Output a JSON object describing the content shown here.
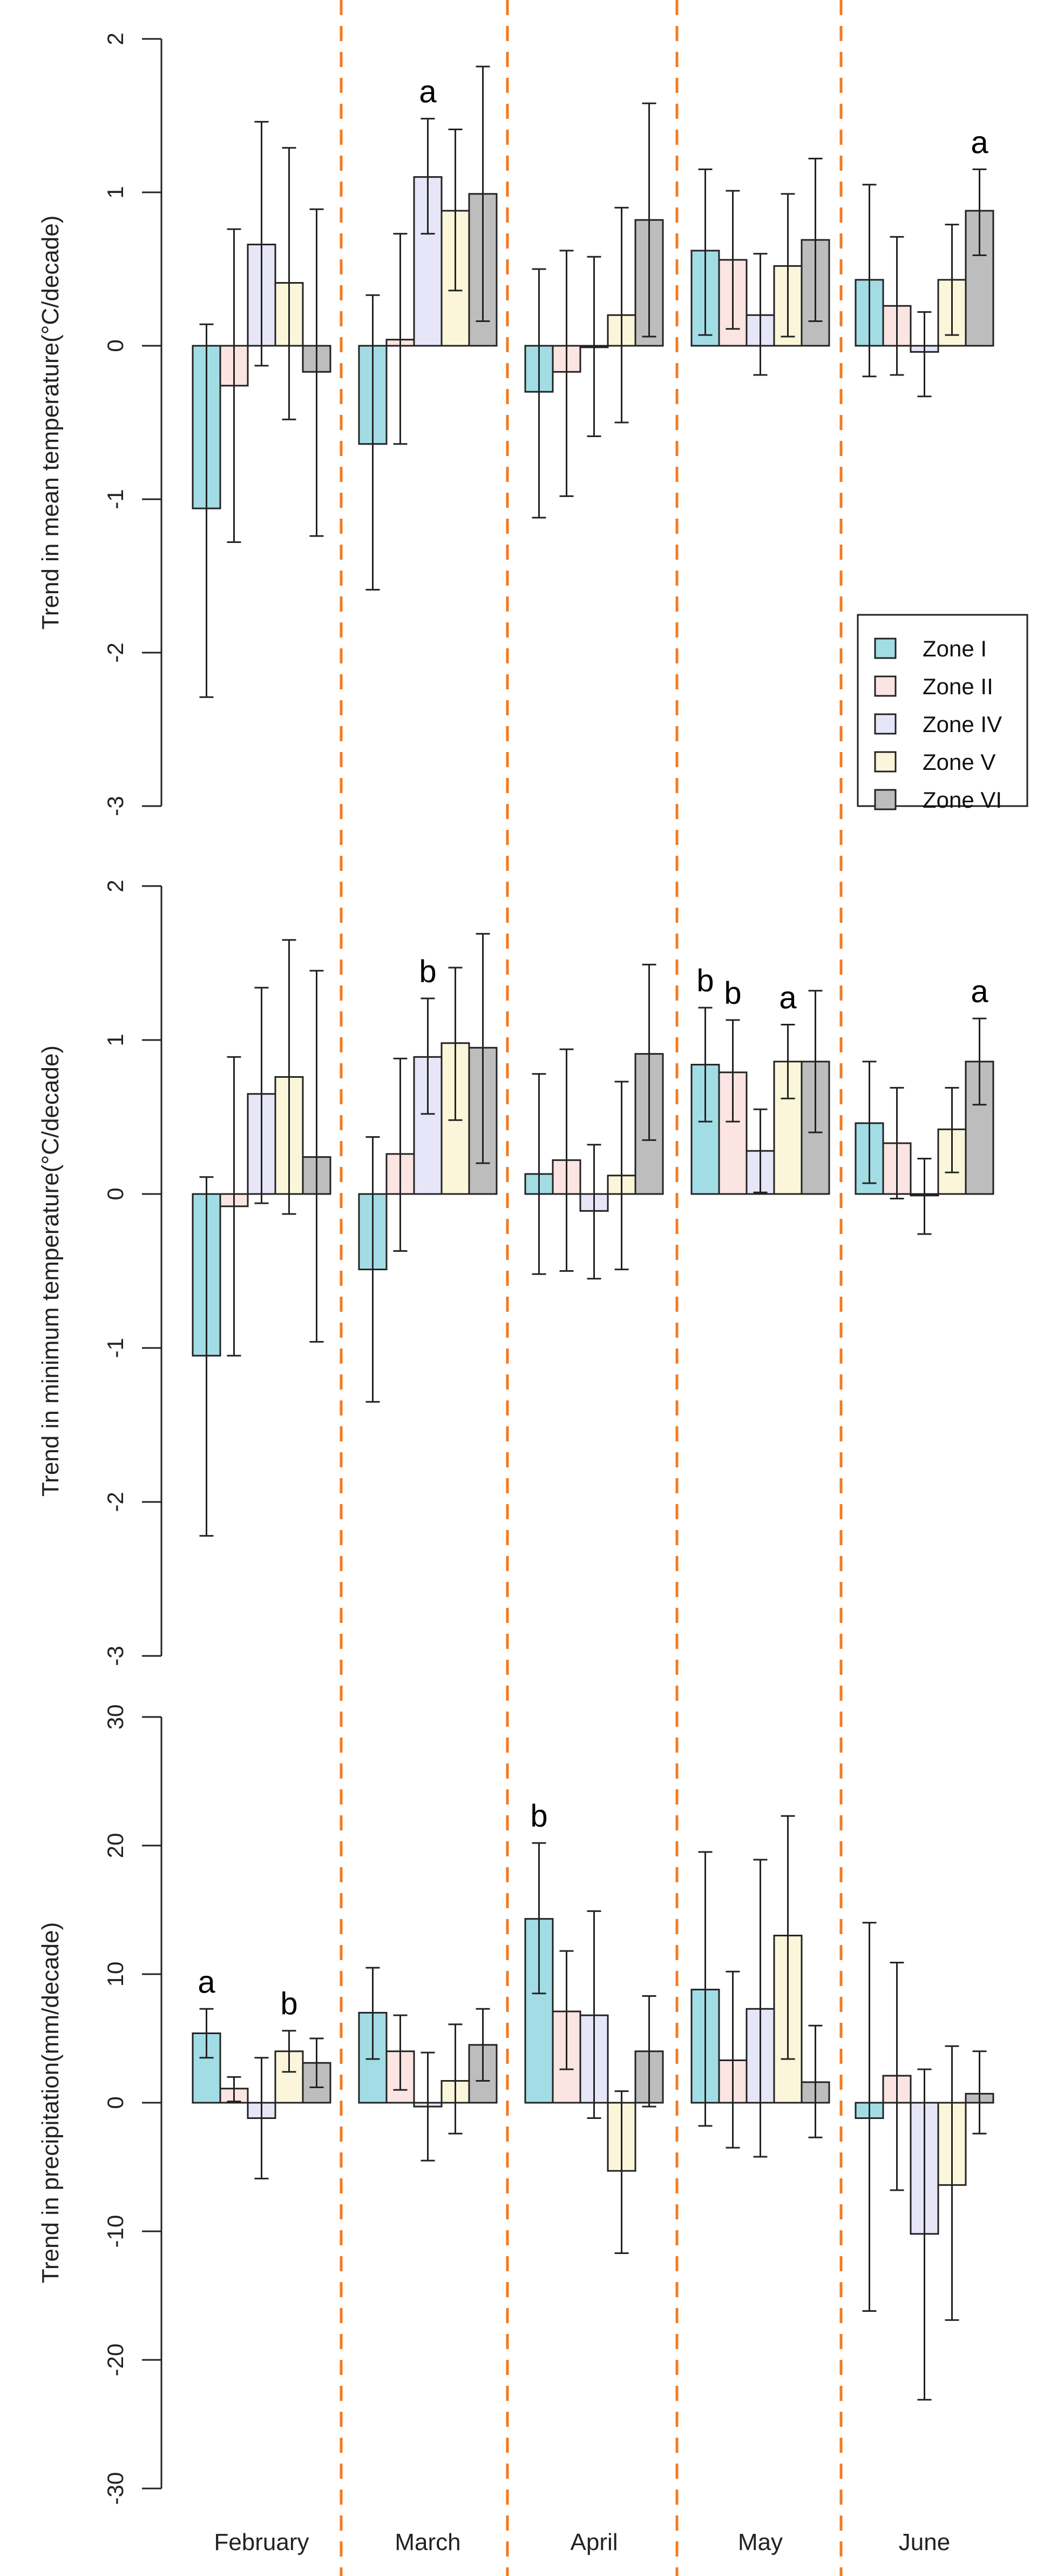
{
  "chart_data": {
    "type": "bar",
    "categories": [
      "February",
      "March",
      "April",
      "May",
      "June"
    ],
    "zones": [
      "Zone I",
      "Zone II",
      "Zone IV",
      "Zone V",
      "Zone VI"
    ],
    "colors": {
      "Zone I": "#a2dde6",
      "Zone II": "#fbe4e1",
      "Zone IV": "#e6e6f8",
      "Zone V": "#fbf6da",
      "Zone VI": "#bdbdbd",
      "divider": "#f47a20"
    },
    "legend_position": "right, within top panel",
    "panels": [
      {
        "ylabel": "Trend in mean temperature(°C/decade)",
        "ylim": [
          -3,
          2
        ],
        "ticks": [
          "-3",
          "-2",
          "-1",
          "0",
          "1",
          "2"
        ],
        "tick_values": [
          -3,
          -2,
          -1,
          0,
          1,
          2
        ],
        "series": [
          {
            "name": "Zone I",
            "values": [
              -1.06,
              -0.64,
              -0.3,
              0.62,
              0.43
            ],
            "upper": [
              0.14,
              0.33,
              0.5,
              1.15,
              1.05
            ],
            "lower": [
              -2.29,
              -1.59,
              -1.12,
              0.07,
              -0.2
            ]
          },
          {
            "name": "Zone II",
            "values": [
              -0.26,
              0.04,
              -0.17,
              0.56,
              0.26
            ],
            "upper": [
              0.76,
              0.73,
              0.62,
              1.01,
              0.71
            ],
            "lower": [
              -1.28,
              -0.64,
              -0.98,
              0.11,
              -0.19
            ]
          },
          {
            "name": "Zone IV",
            "values": [
              0.66,
              1.1,
              -0.01,
              0.2,
              -0.04
            ],
            "upper": [
              1.46,
              1.48,
              0.58,
              0.6,
              0.22
            ],
            "lower": [
              -0.13,
              0.73,
              -0.59,
              -0.19,
              -0.33
            ]
          },
          {
            "name": "Zone V",
            "values": [
              0.41,
              0.88,
              0.2,
              0.52,
              0.43
            ],
            "upper": [
              1.29,
              1.41,
              0.9,
              0.99,
              0.79
            ],
            "lower": [
              -0.48,
              0.36,
              -0.5,
              0.06,
              0.07
            ]
          },
          {
            "name": "Zone VI",
            "values": [
              -0.17,
              0.99,
              0.82,
              0.69,
              0.88
            ],
            "upper": [
              0.89,
              1.82,
              1.58,
              1.22,
              1.15
            ],
            "lower": [
              -1.24,
              0.16,
              0.06,
              0.16,
              0.59
            ]
          }
        ],
        "annotations": [
          {
            "text": "a",
            "month": "March",
            "zone": "Zone IV"
          },
          {
            "text": "a",
            "month": "June",
            "zone": "Zone VI"
          }
        ]
      },
      {
        "ylabel": "Trend in minimum temperature(°C/decade)",
        "ylim": [
          -3,
          2
        ],
        "ticks": [
          "-3",
          "-2",
          "-1",
          "0",
          "1",
          "2"
        ],
        "tick_values": [
          -3,
          -2,
          -1,
          0,
          1,
          2
        ],
        "series": [
          {
            "name": "Zone I",
            "values": [
              -1.05,
              -0.49,
              0.13,
              0.84,
              0.46
            ],
            "upper": [
              0.11,
              0.37,
              0.78,
              1.21,
              0.86
            ],
            "lower": [
              -2.22,
              -1.35,
              -0.52,
              0.47,
              0.07
            ]
          },
          {
            "name": "Zone II",
            "values": [
              -0.08,
              0.26,
              0.22,
              0.79,
              0.33
            ],
            "upper": [
              0.89,
              0.88,
              0.94,
              1.13,
              0.69
            ],
            "lower": [
              -1.05,
              -0.37,
              -0.5,
              0.47,
              -0.03
            ]
          },
          {
            "name": "Zone IV",
            "values": [
              0.65,
              0.89,
              -0.11,
              0.28,
              -0.01
            ],
            "upper": [
              1.34,
              1.27,
              0.32,
              0.55,
              0.23
            ],
            "lower": [
              -0.06,
              0.52,
              -0.55,
              0.01,
              -0.26
            ]
          },
          {
            "name": "Zone V",
            "values": [
              0.76,
              0.98,
              0.12,
              0.86,
              0.42
            ],
            "upper": [
              1.65,
              1.47,
              0.73,
              1.1,
              0.69
            ],
            "lower": [
              -0.13,
              0.48,
              -0.49,
              0.62,
              0.14
            ]
          },
          {
            "name": "Zone VI",
            "values": [
              0.24,
              0.95,
              0.91,
              0.86,
              0.86
            ],
            "upper": [
              1.45,
              1.69,
              1.49,
              1.32,
              1.14
            ],
            "lower": [
              -0.96,
              0.2,
              0.35,
              0.4,
              0.58
            ]
          }
        ],
        "annotations": [
          {
            "text": "b",
            "month": "March",
            "zone": "Zone IV"
          },
          {
            "text": "b",
            "month": "May",
            "zone": "Zone I"
          },
          {
            "text": "b",
            "month": "May",
            "zone": "Zone II"
          },
          {
            "text": "a",
            "month": "May",
            "zone": "Zone V"
          },
          {
            "text": "a",
            "month": "June",
            "zone": "Zone VI"
          }
        ]
      },
      {
        "ylabel": "Trend in precipitation(mm/decade)",
        "ylim": [
          -30,
          30
        ],
        "ticks": [
          "-30",
          "-20",
          "-10",
          "0",
          "10",
          "20",
          "30"
        ],
        "tick_values": [
          -30,
          -20,
          -10,
          0,
          10,
          20,
          30
        ],
        "series": [
          {
            "name": "Zone I",
            "values": [
              5.4,
              7.0,
              14.3,
              8.8,
              -1.2
            ],
            "upper": [
              7.3,
              10.5,
              20.2,
              19.5,
              14.0
            ],
            "lower": [
              3.5,
              3.4,
              8.5,
              -1.8,
              -16.2
            ]
          },
          {
            "name": "Zone II",
            "values": [
              1.1,
              4.0,
              7.1,
              3.3,
              2.1
            ],
            "upper": [
              2.0,
              6.8,
              11.8,
              10.2,
              10.9
            ],
            "lower": [
              0.1,
              1.0,
              2.6,
              -3.5,
              -6.8
            ]
          },
          {
            "name": "Zone IV",
            "values": [
              -1.2,
              -0.3,
              6.8,
              7.3,
              -10.2
            ],
            "upper": [
              3.5,
              3.9,
              14.9,
              18.9,
              2.6
            ],
            "lower": [
              -5.9,
              -4.5,
              -1.2,
              -4.2,
              -23.1
            ]
          },
          {
            "name": "Zone V",
            "values": [
              4.0,
              1.7,
              -5.3,
              13.0,
              -6.4
            ],
            "upper": [
              5.6,
              6.1,
              0.9,
              22.3,
              4.4
            ],
            "lower": [
              2.4,
              -2.4,
              -11.7,
              3.4,
              -16.9
            ]
          },
          {
            "name": "Zone VI",
            "values": [
              3.1,
              4.5,
              4.0,
              1.6,
              0.7
            ],
            "upper": [
              5.0,
              7.3,
              8.3,
              6.0,
              4.0
            ],
            "lower": [
              1.2,
              1.7,
              -0.3,
              -2.7,
              -2.4
            ]
          }
        ],
        "annotations": [
          {
            "text": "a",
            "month": "February",
            "zone": "Zone I"
          },
          {
            "text": "b",
            "month": "February",
            "zone": "Zone V"
          },
          {
            "text": "b",
            "month": "April",
            "zone": "Zone I"
          }
        ]
      }
    ]
  }
}
